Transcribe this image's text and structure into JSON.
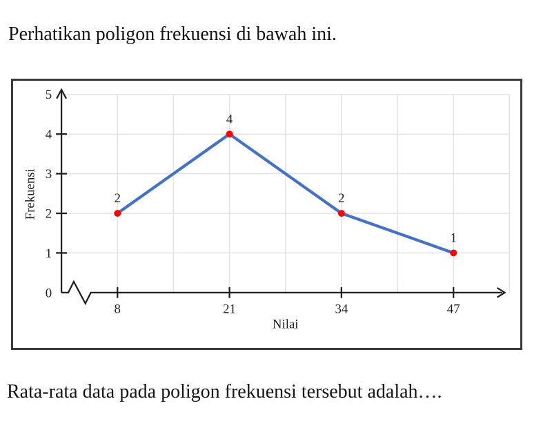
{
  "texts": {
    "intro": "Perhatikan poligon frekuensi di bawah ini.",
    "question": "Rata-rata data pada poligon frekuensi tersebut adalah…."
  },
  "chart_data": {
    "type": "line",
    "title": "",
    "xlabel": "Nilai",
    "ylabel": "Frekuensi",
    "x": [
      8,
      21,
      34,
      47
    ],
    "series": [
      {
        "name": "Frekuensi",
        "values": [
          2,
          4,
          2,
          1
        ]
      }
    ],
    "point_labels": [
      "2",
      "4",
      "2",
      "1"
    ],
    "x_tick_labels": [
      "8",
      "21",
      "34",
      "47"
    ],
    "y_tick_labels": [
      "0",
      "1",
      "2",
      "3",
      "4",
      "5"
    ],
    "ylim": [
      0,
      5
    ],
    "grid": "on",
    "legend": "none",
    "axis_break_x": true,
    "colors": {
      "line": "#4472c4",
      "marker": "#ff0000",
      "axis": "#1f1f1f",
      "grid": "#e3e3e3",
      "frame": "#3a3a3a",
      "text": "#1f1f1f"
    }
  }
}
